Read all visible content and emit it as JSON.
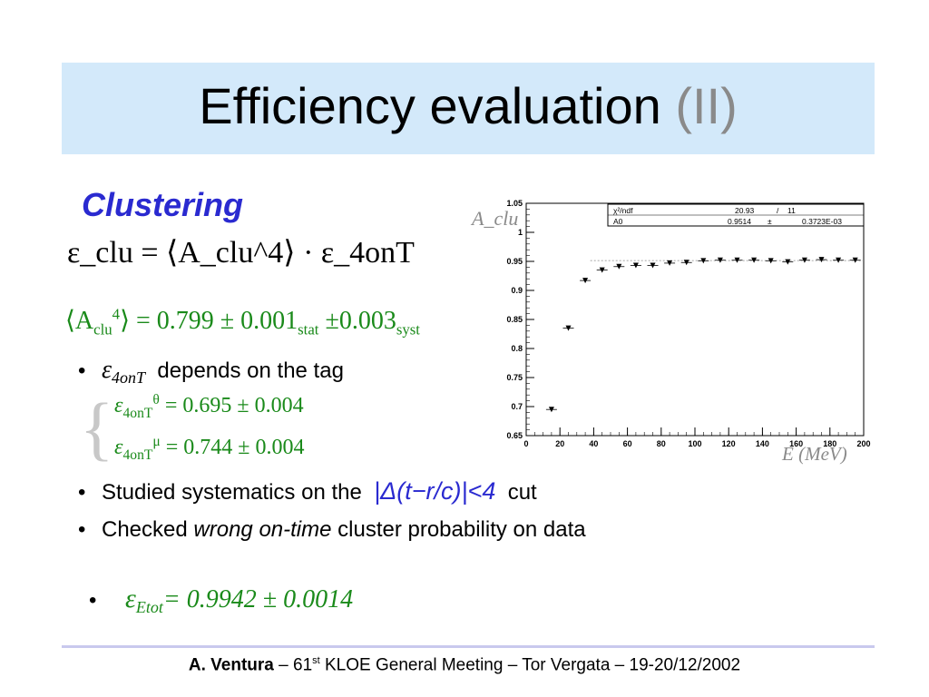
{
  "title": {
    "main": "Efficiency evaluation",
    "accent": "(II)"
  },
  "subtitle": "Clustering",
  "formulas": {
    "main_eq": "ε_clu = ⟨A_clu^4⟩ · ε_4onT",
    "avg_lhs": "⟨A",
    "avg_sub": "clu",
    "avg_sup": "4",
    "avg_rhs": "⟩ = 0.799 ± 0.001",
    "avg_stat": "stat",
    "avg_mid": " ±0.003",
    "avg_syst": "syst"
  },
  "bullets": {
    "b1_symbol": "ε",
    "b1_sub": "4onT",
    "b1_text": "depends on the tag",
    "theta_sup": "θ",
    "theta_value": "= 0.695 ± 0.004",
    "mu_sup": "μ",
    "mu_value": "= 0.744 ± 0.004",
    "b2_text_a": "Studied systematics on the",
    "b2_delta": "|Δ(t−r/c)|<4",
    "b2_text_b": "cut",
    "b3_text_a": "Checked",
    "b3_em": "wrong on-time",
    "b3_text_b": "cluster probability on data",
    "b4_symbol": "ε",
    "b4_sub": "Etot",
    "b4_value": "= 0.9942 ± 0.0014"
  },
  "footer": {
    "author": "A. Ventura",
    "sep1": " – 61",
    "st": "st",
    "rest": " KLOE General Meeting – Tor Vergata – 19-20/12/2002"
  },
  "chart_data": {
    "type": "scatter",
    "ylabel": "A_clu",
    "xlabel": "E (MeV)",
    "xlim": [
      0,
      200
    ],
    "ylim": [
      0.65,
      1.05
    ],
    "xticks": [
      "0",
      "20",
      "40",
      "60",
      "80",
      "100",
      "120",
      "140",
      "160",
      "180",
      "200"
    ],
    "yticks": [
      "0.65",
      "0.7",
      "0.75",
      "0.8",
      "0.85",
      "0.9",
      "0.95",
      "1",
      "1.05"
    ],
    "stats_box": {
      "row1_label": "χ²/ndf",
      "row1_value": "20.93",
      "row1_sep": "/",
      "row1_ndf": "11",
      "row2_label": "A0",
      "row2_value": "0.9514",
      "row2_pm": "±",
      "row2_err": "0.3723E-03"
    },
    "points": [
      {
        "x": 15,
        "y": 0.695
      },
      {
        "x": 25,
        "y": 0.835
      },
      {
        "x": 35,
        "y": 0.917
      },
      {
        "x": 45,
        "y": 0.935
      },
      {
        "x": 55,
        "y": 0.941
      },
      {
        "x": 65,
        "y": 0.943
      },
      {
        "x": 75,
        "y": 0.943
      },
      {
        "x": 85,
        "y": 0.947
      },
      {
        "x": 95,
        "y": 0.948
      },
      {
        "x": 105,
        "y": 0.951
      },
      {
        "x": 115,
        "y": 0.952
      },
      {
        "x": 125,
        "y": 0.952
      },
      {
        "x": 135,
        "y": 0.952
      },
      {
        "x": 145,
        "y": 0.951
      },
      {
        "x": 155,
        "y": 0.949
      },
      {
        "x": 165,
        "y": 0.952
      },
      {
        "x": 175,
        "y": 0.953
      },
      {
        "x": 185,
        "y": 0.952
      },
      {
        "x": 195,
        "y": 0.952
      }
    ]
  }
}
